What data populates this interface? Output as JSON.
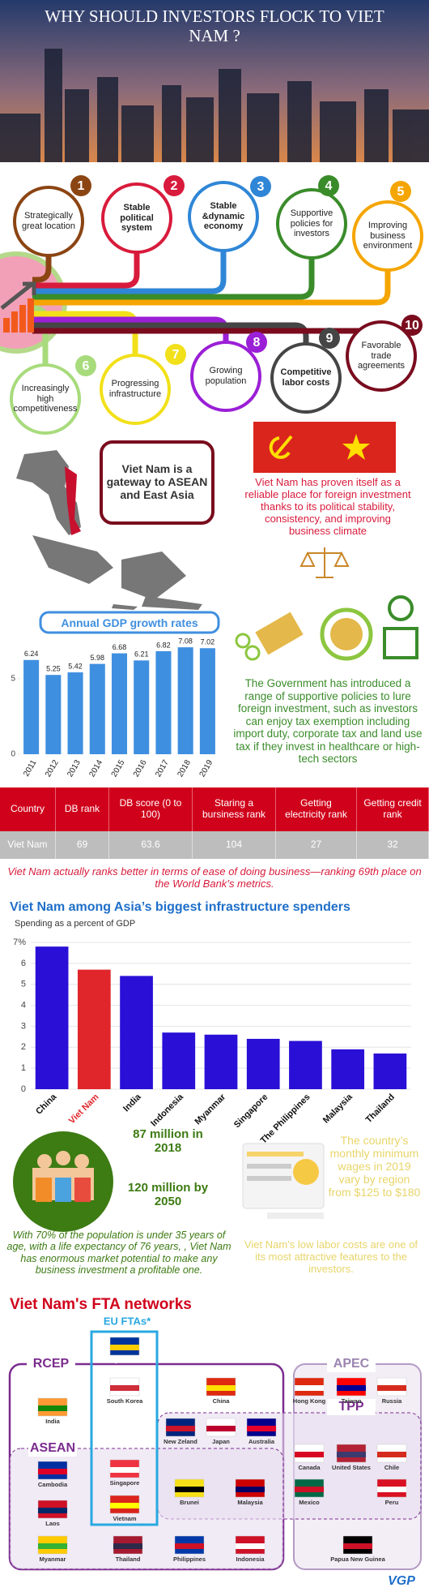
{
  "header": {
    "title": "WHY SHOULD INVESTORS FLOCK TO VIET NAM ?"
  },
  "reasons": [
    {
      "number": 1,
      "label": "Strategically great location",
      "color": "#8b4513"
    },
    {
      "number": 2,
      "label": "Stable political system",
      "color": "#d81b3c"
    },
    {
      "number": 3,
      "label": "Stable &dynamic economy",
      "color": "#2f86d6"
    },
    {
      "number": 4,
      "label": "Supportive policies for investors",
      "color": "#3a8c2a"
    },
    {
      "number": 5,
      "label": "Improving business environment",
      "color": "#f5a500"
    },
    {
      "number": 6,
      "label": "Increasingly high competitiveness",
      "color": "#a8db7c"
    },
    {
      "number": 7,
      "label": "Progressing infrastructure",
      "color": "#f2e01a"
    },
    {
      "number": 8,
      "label": "Growing population",
      "color": "#9b1fd6"
    },
    {
      "number": 9,
      "label": "Competitive labor costs",
      "color": "#454545"
    },
    {
      "number": 10,
      "label": "Favorable trade agreements",
      "color": "#7a0c1e"
    }
  ],
  "gateway": {
    "box": "Viet Nam is a gateway to ASEAN and East Asia",
    "text": "Viet Nam has proven itself as a reliable place for foreign investment thanks to its political stability, consistency, and improving business climate"
  },
  "gdp_chart": {
    "type": "bar",
    "title": "Annual GDP growth rates",
    "categories": [
      "2011",
      "2012",
      "2013",
      "2014",
      "2015",
      "2016",
      "2017",
      "2018",
      "2019"
    ],
    "values": [
      6.24,
      5.25,
      5.42,
      5.98,
      6.68,
      6.21,
      6.82,
      7.08,
      7.02
    ],
    "color": "#3f8fe0",
    "ylim": [
      0,
      8
    ],
    "yticks": [
      0,
      5
    ]
  },
  "policy": {
    "text": "The Government has introduced a range of supportive policies to lure foreign investment, such as investors can enjoy tax exemption including import duty, corporate tax and land use tax if they invest in healthcare or high-tech sectors"
  },
  "table": {
    "header": [
      "Country",
      "DB rank",
      "DB score (0 to 100)",
      "Staring a bursiness rank",
      "Getting electricity rank",
      "Getting credit rank"
    ],
    "rows": [
      [
        "Viet Nam",
        69,
        63.6,
        104,
        27,
        32
      ]
    ]
  },
  "note": "Viet Nam actually ranks better in terms of ease of doing business—ranking 69th place on the World Bank’s metrics.",
  "infra_chart": {
    "type": "bar",
    "title": "Viet Nam among Asia’s biggest infrastructure spenders",
    "subtitle": "Spending as a percent of GDP",
    "categories": [
      "China",
      "Viet Nam",
      "India",
      "Indonesia",
      "Myanmar",
      "Singapore",
      "The Philippines",
      "Malaysia",
      "Thailand"
    ],
    "values": [
      6.8,
      5.7,
      5.4,
      2.7,
      2.6,
      2.4,
      2.3,
      1.9,
      1.7
    ],
    "colors": [
      "#2a0fd6",
      "#e0262b",
      "#2a0fd6",
      "#2a0fd6",
      "#2a0fd6",
      "#2a0fd6",
      "#2a0fd6",
      "#2a0fd6",
      "#2a0fd6"
    ],
    "label_colors": [
      "#111111",
      "#e0262b",
      "#111111",
      "#111111",
      "#111111",
      "#111111",
      "#111111",
      "#111111",
      "#111111"
    ],
    "ylim": [
      0,
      7
    ],
    "yticks": [
      0,
      1,
      2,
      3,
      4,
      5,
      6,
      {
        "value": 7,
        "label": "7%"
      }
    ],
    "grid": true
  },
  "population": {
    "stat_2018": "87 million in 2018",
    "stat_2050": "120 million by 2050",
    "text": "With 70% of the population is under 35 years of age, with a life expectancy of 76 years, , Viet Nam has enormous market potential to make any business investment a profitable one.",
    "wage_text": "The country’s monthly minimum wages in 2019 vary by region from $125 to $180",
    "labor_text": "Viet Nam’s low labor costs are one of its most attractive features to the investors."
  },
  "fta": {
    "title": "Viet Nam's FTA networks",
    "groups": [
      "EU FTAs*",
      "RCEP",
      "APEC",
      "TPP",
      "ASEAN"
    ],
    "countries": [
      "European Union",
      "South Korea",
      "China",
      "Hong Kong",
      "Taiwan",
      "Russia",
      "India",
      "New Zeland",
      "Japan",
      "Australia",
      "Canada",
      "United States",
      "Chile",
      "Cambodia",
      "Singapore",
      "Brunei",
      "Malaysia",
      "Mexico",
      "Peru",
      "Laos",
      "Vietnam",
      "Myanmar",
      "Thailand",
      "Philippines",
      "Indonesia",
      "Papua New Guinea"
    ]
  },
  "footer": {
    "logo": "VGP"
  }
}
